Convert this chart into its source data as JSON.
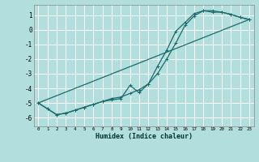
{
  "xlabel": "Humidex (Indice chaleur)",
  "background_color": "#b2dede",
  "grid_color": "#ffffff",
  "line_color": "#1a6b6b",
  "xlim": [
    -0.5,
    23.5
  ],
  "ylim": [
    -6.6,
    1.7
  ],
  "xticks": [
    0,
    1,
    2,
    3,
    4,
    5,
    6,
    7,
    8,
    9,
    10,
    11,
    12,
    13,
    14,
    15,
    16,
    17,
    18,
    19,
    20,
    21,
    22,
    23
  ],
  "yticks": [
    -6,
    -5,
    -4,
    -3,
    -2,
    -1,
    0,
    1
  ],
  "curve1_x": [
    0,
    1,
    2,
    3,
    4,
    5,
    6,
    7,
    8,
    9,
    10,
    11,
    12,
    13,
    14,
    15,
    16,
    17,
    18,
    19,
    20,
    21,
    22,
    23
  ],
  "curve1_y": [
    -5.0,
    -5.4,
    -5.8,
    -5.7,
    -5.5,
    -5.3,
    -5.1,
    -4.9,
    -4.8,
    -4.7,
    -3.8,
    -4.3,
    -3.7,
    -2.5,
    -1.4,
    -0.1,
    0.5,
    1.1,
    1.3,
    1.2,
    1.2,
    1.05,
    0.85,
    0.7
  ],
  "curve2_x": [
    0,
    1,
    2,
    3,
    4,
    5,
    6,
    7,
    8,
    9,
    10,
    11,
    12,
    13,
    14,
    15,
    16,
    17,
    18,
    19,
    20,
    21,
    22,
    23
  ],
  "curve2_y": [
    -5.0,
    -5.4,
    -5.8,
    -5.7,
    -5.5,
    -5.3,
    -5.1,
    -4.9,
    -4.7,
    -4.6,
    -4.35,
    -4.1,
    -3.7,
    -3.0,
    -2.0,
    -0.9,
    0.3,
    0.95,
    1.3,
    1.3,
    1.2,
    1.05,
    0.85,
    0.7
  ],
  "curve3_x": [
    0,
    23
  ],
  "curve3_y": [
    -5.0,
    0.7
  ]
}
